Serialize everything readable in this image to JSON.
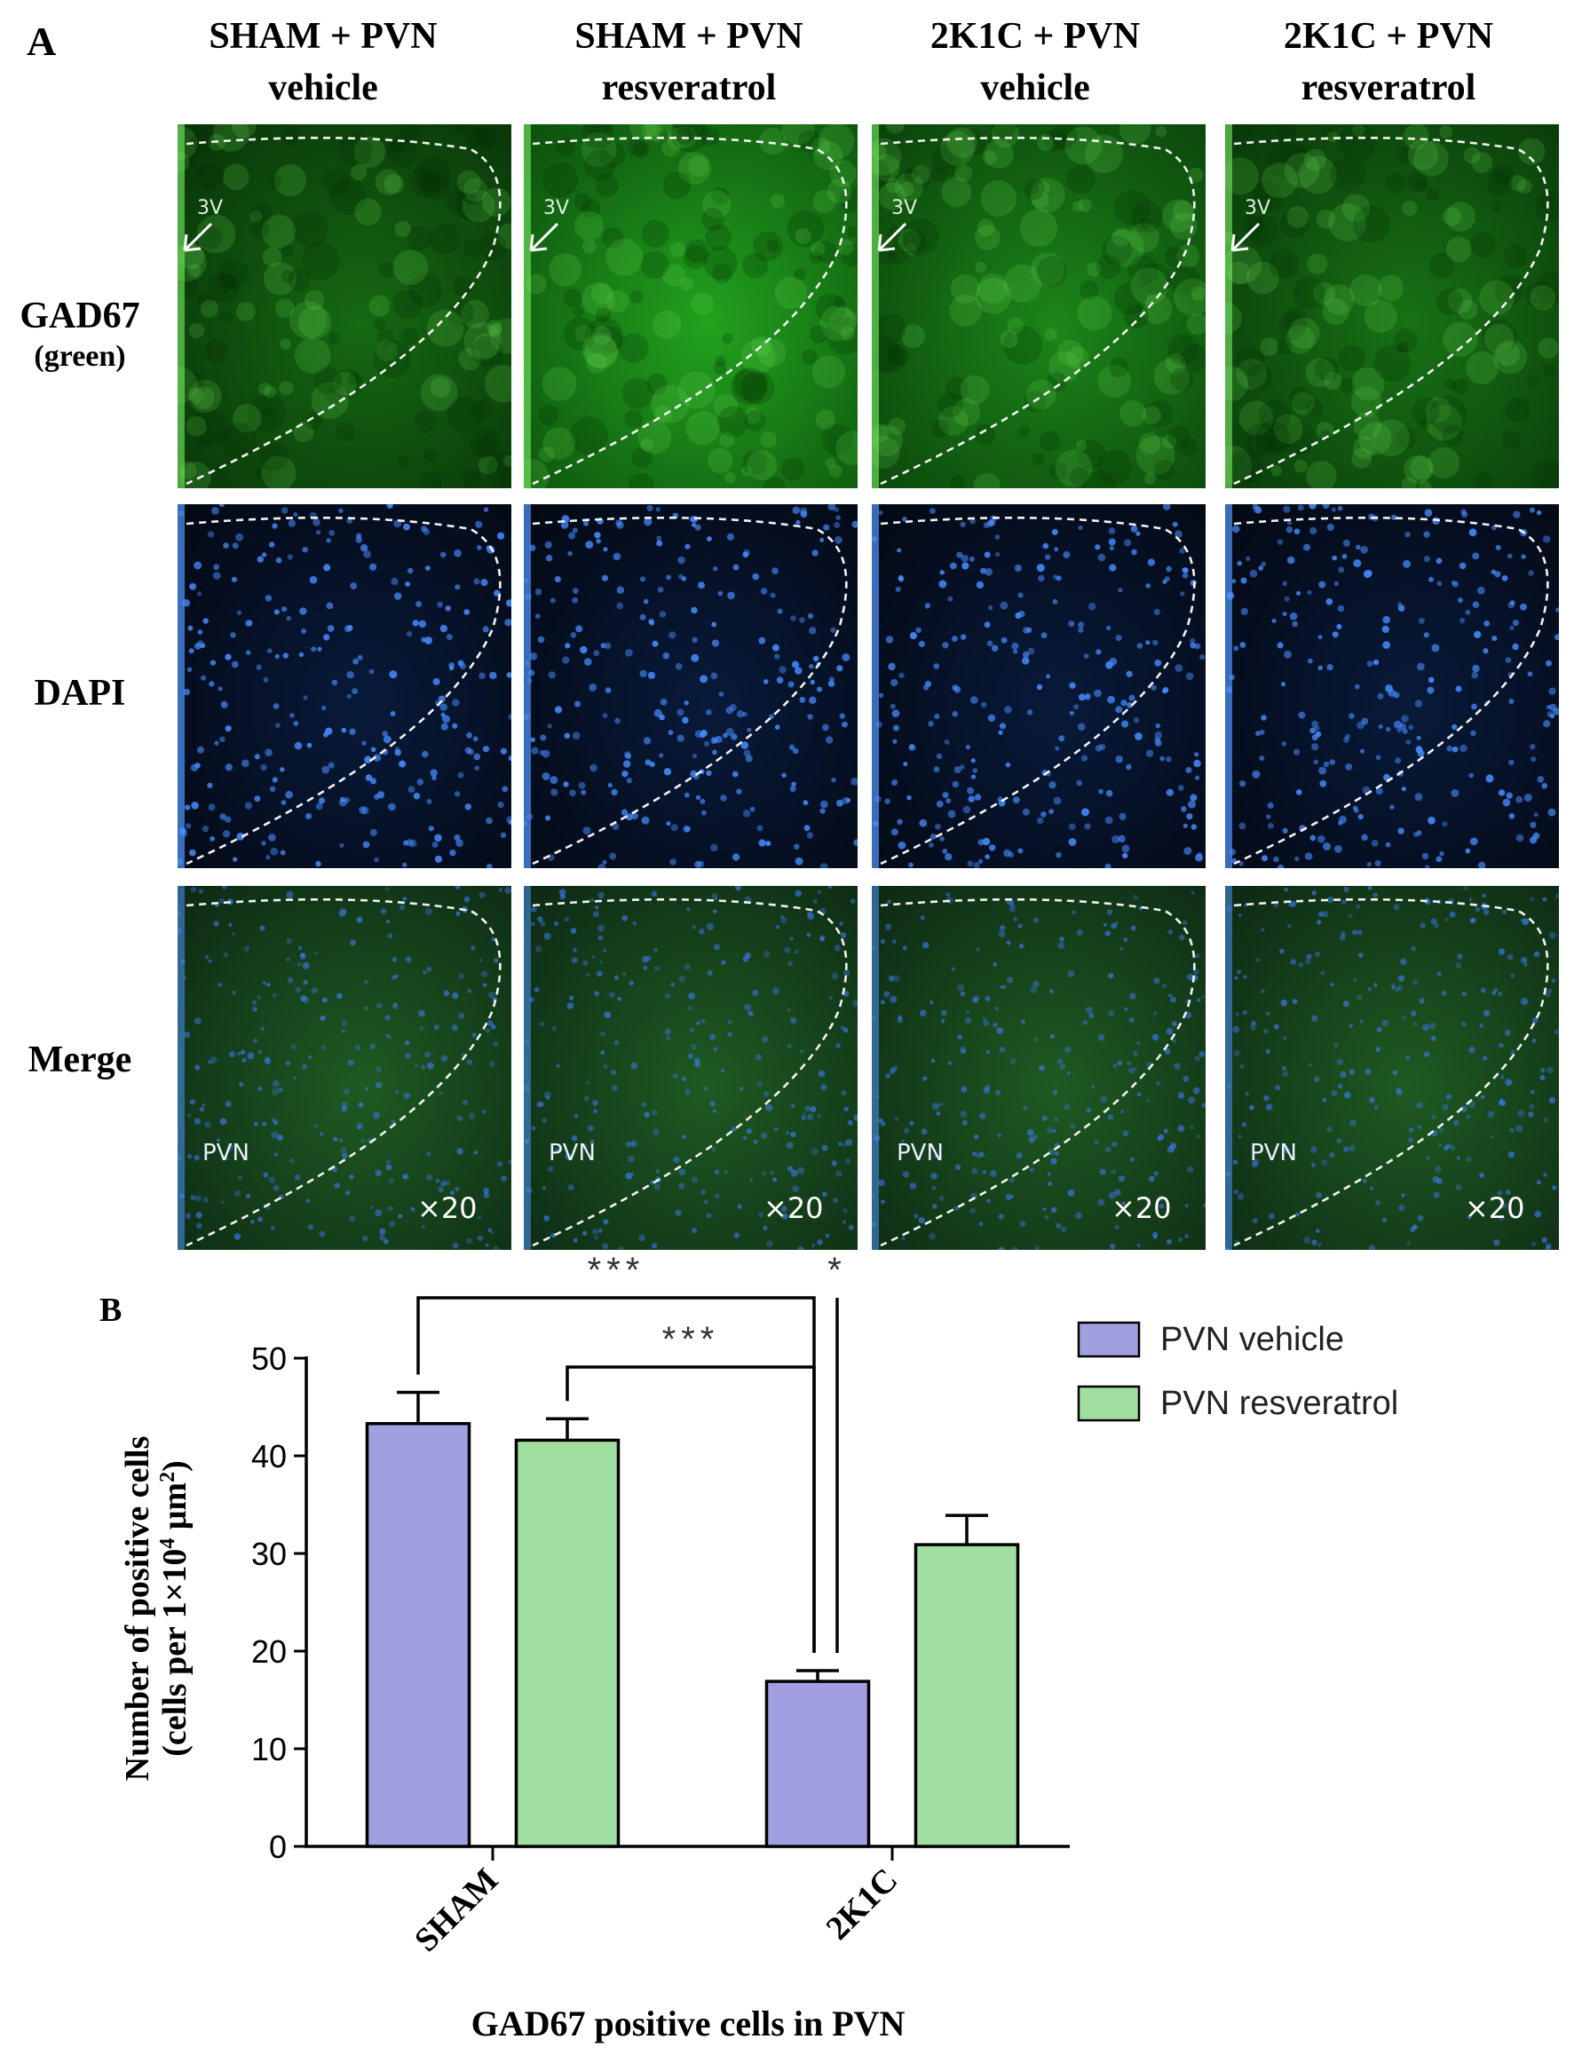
{
  "panel_a": {
    "letter": "A",
    "columns": [
      {
        "line1": "SHAM + PVN",
        "line2": "vehicle"
      },
      {
        "line1": "SHAM + PVN",
        "line2": "resveratrol"
      },
      {
        "line1": "2K1C + PVN",
        "line2": "vehicle"
      },
      {
        "line1": "2K1C + PVN",
        "line2": "resveratrol"
      }
    ],
    "rows": [
      {
        "line1": "GAD67",
        "line2": "(green)",
        "stain": "green"
      },
      {
        "line1": "DAPI",
        "line2": "",
        "stain": "blue"
      },
      {
        "line1": "Merge",
        "line2": "",
        "stain": "merge"
      }
    ],
    "tile_labels": {
      "ventricle": "3V",
      "nucleus": "PVN",
      "magnification": "×20"
    }
  },
  "colors": {
    "vehicle_bar": "#a09fe0",
    "resveratrol_bar": "#a1dfa1",
    "gad67_green": "#2e8a1c",
    "dapi_blue": "#3c7ae0",
    "background_dark": "#06101c"
  },
  "chart_data": {
    "type": "bar",
    "panel_letter": "B",
    "title": "GAD67 positive cells in PVN",
    "xlabel": "GAD67 positive cells in PVN",
    "ylabel_line1": "Number of positive cells",
    "ylabel_line2_prefix": "(cells per 1×10",
    "ylabel_sup1": "4",
    "ylabel_mid": " μm",
    "ylabel_sup2": "2",
    "ylabel_suffix": ")",
    "categories": [
      "SHAM",
      "2K1C"
    ],
    "series": [
      {
        "name": "PVN vehicle",
        "color": "#a09fe0",
        "values": [
          43.3,
          16.9
        ],
        "errors": [
          3.2,
          1.1
        ]
      },
      {
        "name": "PVN resveratrol",
        "color": "#a1dfa1",
        "values": [
          41.6,
          30.9
        ],
        "errors": [
          2.2,
          3.0
        ]
      }
    ],
    "ylim": [
      0,
      50
    ],
    "yticks": [
      0,
      10,
      20,
      30,
      40,
      50
    ],
    "legend_position": "top-right",
    "significance": [
      {
        "from": [
          0,
          0
        ],
        "to": [
          1,
          0
        ],
        "label": "***"
      },
      {
        "from": [
          0,
          1
        ],
        "to": [
          1,
          0
        ],
        "label": "***"
      },
      {
        "from": [
          1,
          0
        ],
        "to": [
          1,
          1
        ],
        "label": "*"
      }
    ]
  }
}
